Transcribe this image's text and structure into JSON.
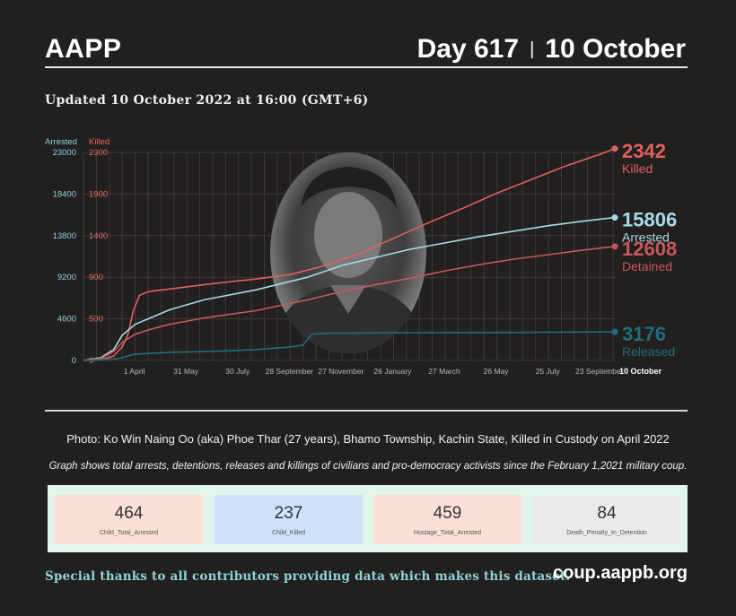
{
  "header": {
    "brand": "AAPP",
    "day": "Day 617",
    "separator": "|",
    "date": "10 October"
  },
  "updated": "Updated 10 October 2022 at 16:00 (GMT+6)",
  "chart_data": {
    "type": "line",
    "axes": {
      "left_title": "Arrested",
      "right_title": "Killed",
      "left_ticks": [
        0,
        4600,
        9200,
        13800,
        18400,
        23000
      ],
      "right_ticks": [
        0,
        500,
        900,
        1400,
        1900,
        2300
      ],
      "ylim_left": [
        0,
        23000
      ],
      "ylim_right": [
        0,
        2300
      ],
      "grid": true
    },
    "x_ticks": [
      {
        "label": "1 April",
        "day": 59
      },
      {
        "label": "31 May",
        "day": 119
      },
      {
        "label": "30 July",
        "day": 179
      },
      {
        "label": "28 September",
        "day": 239
      },
      {
        "label": "27 November",
        "day": 299
      },
      {
        "label": "26 January",
        "day": 359
      },
      {
        "label": "27 March",
        "day": 419
      },
      {
        "label": "26 May",
        "day": 479
      },
      {
        "label": "25 July",
        "day": 539
      },
      {
        "label": "23 September",
        "day": 599
      },
      {
        "label": "10 October",
        "day": 617,
        "bold": true
      }
    ],
    "xlim_days": [
      0,
      617
    ],
    "series": [
      {
        "name": "Killed",
        "label": "Killed",
        "value_text": "2342",
        "axis": "right",
        "color": "#e0625b",
        "points": [
          [
            0,
            0
          ],
          [
            20,
            8
          ],
          [
            35,
            50
          ],
          [
            45,
            150
          ],
          [
            52,
            300
          ],
          [
            58,
            550
          ],
          [
            65,
            720
          ],
          [
            75,
            760
          ],
          [
            100,
            790
          ],
          [
            150,
            850
          ],
          [
            200,
            900
          ],
          [
            240,
            950
          ],
          [
            280,
            1050
          ],
          [
            320,
            1180
          ],
          [
            360,
            1350
          ],
          [
            400,
            1520
          ],
          [
            440,
            1680
          ],
          [
            480,
            1850
          ],
          [
            520,
            2000
          ],
          [
            560,
            2150
          ],
          [
            600,
            2280
          ],
          [
            617,
            2342
          ]
        ]
      },
      {
        "name": "Arrested",
        "label": "Arrested",
        "value_text": "15806",
        "axis": "left",
        "color": "#a8dbe6",
        "points": [
          [
            0,
            0
          ],
          [
            20,
            300
          ],
          [
            35,
            1200
          ],
          [
            45,
            2800
          ],
          [
            60,
            4000
          ],
          [
            80,
            4800
          ],
          [
            100,
            5600
          ],
          [
            140,
            6700
          ],
          [
            200,
            7800
          ],
          [
            260,
            9200
          ],
          [
            300,
            10500
          ],
          [
            340,
            11400
          ],
          [
            380,
            12300
          ],
          [
            420,
            13000
          ],
          [
            460,
            13700
          ],
          [
            500,
            14300
          ],
          [
            540,
            14900
          ],
          [
            580,
            15400
          ],
          [
            617,
            15806
          ]
        ]
      },
      {
        "name": "Detained",
        "label": "Detained",
        "value_text": "12608",
        "axis": "left",
        "color": "#c7585a",
        "points": [
          [
            0,
            0
          ],
          [
            20,
            200
          ],
          [
            35,
            1000
          ],
          [
            45,
            2000
          ],
          [
            60,
            2900
          ],
          [
            80,
            3500
          ],
          [
            100,
            4000
          ],
          [
            140,
            4700
          ],
          [
            200,
            5500
          ],
          [
            260,
            6700
          ],
          [
            300,
            7600
          ],
          [
            340,
            8400
          ],
          [
            380,
            9100
          ],
          [
            420,
            9900
          ],
          [
            460,
            10600
          ],
          [
            500,
            11200
          ],
          [
            540,
            11700
          ],
          [
            580,
            12200
          ],
          [
            617,
            12608
          ]
        ]
      },
      {
        "name": "Released",
        "label": "Released",
        "value_text": "3176",
        "axis": "left",
        "color": "#1d6f7c",
        "points": [
          [
            0,
            0
          ],
          [
            40,
            200
          ],
          [
            60,
            700
          ],
          [
            100,
            900
          ],
          [
            150,
            1000
          ],
          [
            200,
            1200
          ],
          [
            240,
            1500
          ],
          [
            255,
            1700
          ],
          [
            265,
            2900
          ],
          [
            280,
            3000
          ],
          [
            350,
            3050
          ],
          [
            450,
            3080
          ],
          [
            550,
            3120
          ],
          [
            617,
            3176
          ]
        ]
      }
    ]
  },
  "photo_caption": "Photo: Ko Win Naing Oo (aka) Phoe Thar (27 years), Bhamo Township, Kachin State, Killed in Custody on April 2022",
  "graph_note": "Graph shows total arrests, detentions, releases and killings of civilians and pro-democracy activists since the February 1,2021 military coup.",
  "stats": [
    {
      "value": "464",
      "label": "Child_Total_Arrested",
      "color": "#fbe0d6"
    },
    {
      "value": "237",
      "label": "Child_Killed",
      "color": "#cfe0fb"
    },
    {
      "value": "459",
      "label": "Hostage_Total_Arrested",
      "color": "#fbe0d6"
    },
    {
      "value": "84",
      "label": "Death_Penalty_In_Detention",
      "color": "#eaeaea"
    }
  ],
  "footer": {
    "thanks": "Special thanks to all contributors providing data which makes this dataset.",
    "site": "coup.aappb.org"
  }
}
